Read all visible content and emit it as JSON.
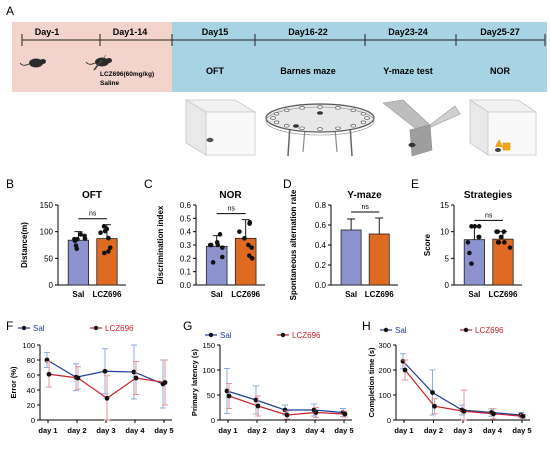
{
  "panel_letters": {
    "A": "A",
    "B": "B",
    "C": "C",
    "D": "D",
    "E": "E",
    "F": "F",
    "G": "G",
    "H": "H"
  },
  "timeline": {
    "day_labels": [
      "Day-1",
      "Day1-14",
      "Day15",
      "Day16-22",
      "Day23-24",
      "Day25-27"
    ],
    "treatment_line1": "LCZ696(60mg/kg)",
    "treatment_line2": "Saline",
    "test_labels": [
      "OFT",
      "Barnes maze",
      "Y-maze test",
      "NOR"
    ],
    "colors": {
      "pre_phase": "#f2d4cc",
      "test_phase": "#a8d3e3"
    }
  },
  "ns_label": "ns",
  "groups": [
    "Sal",
    "LCZ696"
  ],
  "colors": {
    "sal_bar": "#8c93cf",
    "lcz_bar": "#df6a22",
    "sal_line": "#1f3e9c",
    "lcz_line": "#c8232c"
  },
  "chart_data": [
    {
      "panel": "B",
      "type": "bar",
      "title": "OFT",
      "xlabel": "",
      "ylabel": "Distance(m)",
      "categories": [
        "Sal",
        "LCZ696"
      ],
      "values": [
        84,
        87
      ],
      "errors": [
        16,
        26
      ],
      "points": [
        [
          74,
          86,
          92,
          68,
          95,
          83,
          87,
          86
        ],
        [
          101,
          98,
          70,
          63,
          88,
          60,
          105,
          110
        ]
      ],
      "ylim": [
        0,
        150
      ],
      "yticks": [
        0,
        50,
        100,
        150
      ]
    },
    {
      "panel": "C",
      "type": "bar",
      "title": "NOR",
      "xlabel": "",
      "ylabel": "Discrimination index",
      "categories": [
        "Sal",
        "LCZ696"
      ],
      "values": [
        0.29,
        0.35
      ],
      "errors": [
        0.08,
        0.14
      ],
      "points": [
        [
          0.38,
          0.3,
          0.28,
          0.32,
          0.3,
          0.21,
          0.17,
          0.3
        ],
        [
          0.46,
          0.35,
          0.3,
          0.22,
          0.4,
          0.2,
          0.47,
          0.28
        ]
      ],
      "ylim": [
        0,
        0.6
      ],
      "yticks": [
        0.0,
        0.1,
        0.2,
        0.3,
        0.4,
        0.5,
        0.6
      ]
    },
    {
      "panel": "D",
      "type": "bar",
      "title": "Y-maze",
      "xlabel": "",
      "ylabel": "Spontaneous alternation rate",
      "categories": [
        "Sal",
        "LCZ696"
      ],
      "values": [
        0.55,
        0.51
      ],
      "errors": [
        0.11,
        0.16
      ],
      "points": [
        [],
        []
      ],
      "ylim": [
        0,
        0.8
      ],
      "yticks": [
        0.0,
        0.2,
        0.4,
        0.6,
        0.8
      ]
    },
    {
      "panel": "E",
      "type": "bar",
      "title": "Strategies",
      "xlabel": "",
      "ylabel": "Score",
      "categories": [
        "Sal",
        "LCZ696"
      ],
      "values": [
        8.5,
        8.6
      ],
      "errors": [
        2.5,
        1.4
      ],
      "points": [
        [
          11,
          11,
          9,
          11,
          8,
          6,
          9,
          4
        ],
        [
          10,
          10,
          8,
          10,
          7,
          8,
          9,
          8
        ]
      ],
      "ylim": [
        0,
        15
      ],
      "yticks": [
        0,
        5,
        10,
        15
      ]
    },
    {
      "panel": "F",
      "type": "line",
      "xlabel": "",
      "ylabel": "Error (%)",
      "categories": [
        "day 1",
        "day 2",
        "day 3",
        "day 4",
        "day 5"
      ],
      "series": [
        {
          "name": "Sal",
          "values": [
            80,
            57,
            65,
            64,
            48
          ],
          "errors": [
            10,
            18,
            30,
            36,
            32
          ]
        },
        {
          "name": "LCZ696",
          "values": [
            61,
            56,
            29,
            56,
            50
          ],
          "errors": [
            17,
            15,
            30,
            22,
            30
          ]
        }
      ],
      "ylim": [
        0,
        100
      ],
      "yticks": [
        0,
        20,
        40,
        60,
        80,
        100
      ],
      "legend_layout": "split"
    },
    {
      "panel": "G",
      "type": "line",
      "xlabel": "",
      "ylabel": "Primary latency (s)",
      "categories": [
        "day 1",
        "day 2",
        "day 3",
        "day 4",
        "day 5"
      ],
      "series": [
        {
          "name": "Sal",
          "values": [
            58,
            40,
            20,
            20,
            15
          ],
          "errors": [
            45,
            28,
            10,
            12,
            8
          ]
        },
        {
          "name": "LCZ696",
          "values": [
            48,
            28,
            10,
            15,
            12
          ],
          "errors": [
            25,
            20,
            8,
            10,
            6
          ]
        }
      ],
      "ylim": [
        0,
        150
      ],
      "yticks": [
        0,
        50,
        100,
        150
      ],
      "legend_layout": "split"
    },
    {
      "panel": "H",
      "type": "line",
      "xlabel": "",
      "ylabel": "Completion time (s)",
      "categories": [
        "day 1",
        "day 2",
        "day 3",
        "day 4",
        "day 5"
      ],
      "series": [
        {
          "name": "Sal",
          "values": [
            235,
            110,
            40,
            30,
            20
          ],
          "errors": [
            30,
            90,
            20,
            15,
            10
          ]
        },
        {
          "name": "LCZ696",
          "values": [
            200,
            55,
            35,
            25,
            15
          ],
          "errors": [
            40,
            30,
            85,
            20,
            8
          ]
        }
      ],
      "ylim": [
        0,
        300
      ],
      "yticks": [
        0,
        100,
        200,
        300
      ],
      "legend_layout": "split"
    }
  ]
}
